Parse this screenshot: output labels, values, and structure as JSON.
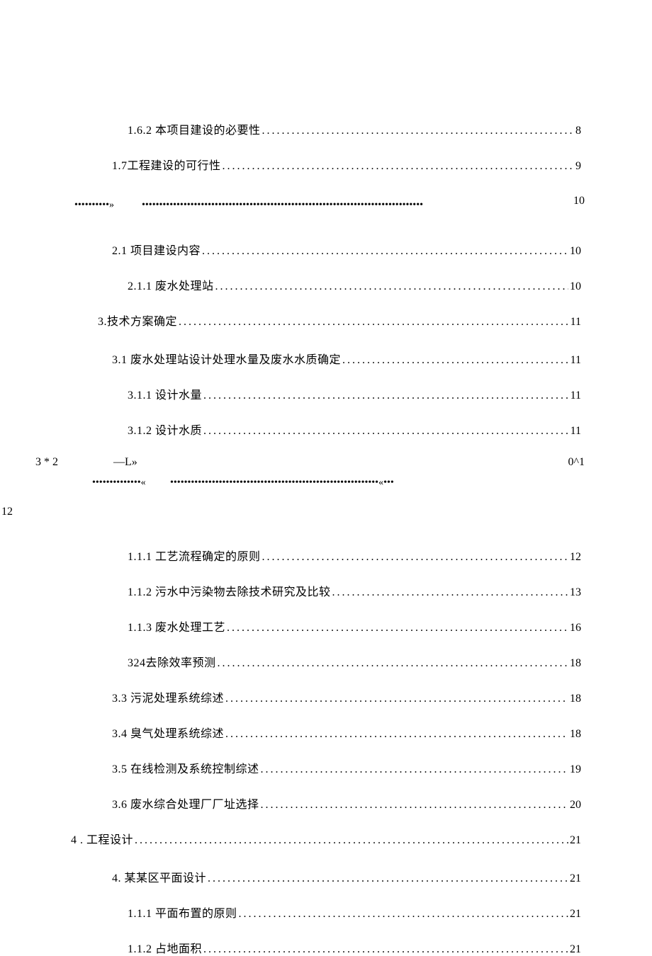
{
  "entries": [
    {
      "id": "e1",
      "indent": "indent-2",
      "label": "1.6.2 本项目建设的必要性",
      "page": "8",
      "dot": "."
    },
    {
      "id": "e2",
      "indent": "indent-1",
      "label": "1.7工程建设的可行性 ",
      "page": "9",
      "dot": "."
    }
  ],
  "special1": {
    "left_dots": "••••••••••»",
    "right_dots": "•••••••••••••••••••••••••••••••••••••••••••••••••••••••••••••••••••••••••••••••••",
    "page": "10"
  },
  "entries2": [
    {
      "id": "e3",
      "indent": "indent-1",
      "label": "2.1  项目建设内容 ",
      "page": "10",
      "dot": "."
    },
    {
      "id": "e4",
      "indent": "indent-2",
      "label": "2.1.1 废水处理站 ",
      "page": "10",
      "dot": "."
    },
    {
      "id": "e5",
      "indent": "indent-3",
      "label": "3.技术方案确定",
      "page": "11",
      "dot": "."
    },
    {
      "id": "e6",
      "indent": "indent-1",
      "label": "3.1 废水处理站设计处理水量及废水水质确定 ",
      "page": "11",
      "dot": "."
    },
    {
      "id": "e7",
      "indent": "indent-2",
      "label": "3.1.1 设计水量 ",
      "page": "11",
      "dot": "."
    },
    {
      "id": "e8",
      "indent": "indent-2",
      "label": "3.1.2 设计水质 ",
      "page": "11",
      "dot": "."
    }
  ],
  "special2": {
    "left": "3 * 2",
    "mid": "—L»",
    "right": "0^1",
    "dots_left": "••••••••••••••«",
    "dots_right": "••••••••••••••••••••••••••••••••••••••••••••••••••••••••••••«•••"
  },
  "orphan_page": "12",
  "entries3": [
    {
      "id": "e9",
      "indent": "indent-2",
      "label": "1.1.1 工艺流程确定的原则 ",
      "page": "12",
      "dot": "."
    },
    {
      "id": "e10",
      "indent": "indent-2",
      "label": "1.1.2 污水中污染物去除技术研究及比较 ",
      "page": "13",
      "dot": "."
    },
    {
      "id": "e11",
      "indent": "indent-2",
      "label": "1.1.3 废水处理工艺 ",
      "page": "16",
      "dot": "."
    },
    {
      "id": "e12",
      "indent": "indent-2",
      "label": "324去除效率预测",
      "page": "18",
      "dot": "."
    },
    {
      "id": "e13",
      "indent": "indent-1",
      "label": "3.3  污泥处理系统综述",
      "page": "18",
      "dot": "."
    },
    {
      "id": "e14",
      "indent": "indent-1",
      "label": "3.4  臭气处理系统综述",
      "page": "18",
      "dot": "."
    },
    {
      "id": "e15",
      "indent": "indent-1",
      "label": "3.5  在线检测及系统控制综述",
      "page": "19",
      "dot": "."
    },
    {
      "id": "e16",
      "indent": "indent-1",
      "label": "3.6  废水综合处理厂厂址选择",
      "page": "20",
      "dot": "."
    },
    {
      "id": "e17",
      "indent": "indent-0",
      "label": "4 . 工程设计",
      "page": "21",
      "dot": "."
    },
    {
      "id": "e18",
      "indent": "indent-1",
      "label": "4. 某某区平面设计 ",
      "page": "21",
      "dot": "."
    },
    {
      "id": "e19",
      "indent": "indent-2",
      "label": "1.1.1 平面布置的原则 ",
      "page": "21",
      "dot": "."
    },
    {
      "id": "e20",
      "indent": "indent-2",
      "label": "1.1.2 占地面积 ",
      "page": "21",
      "dot": "."
    }
  ]
}
